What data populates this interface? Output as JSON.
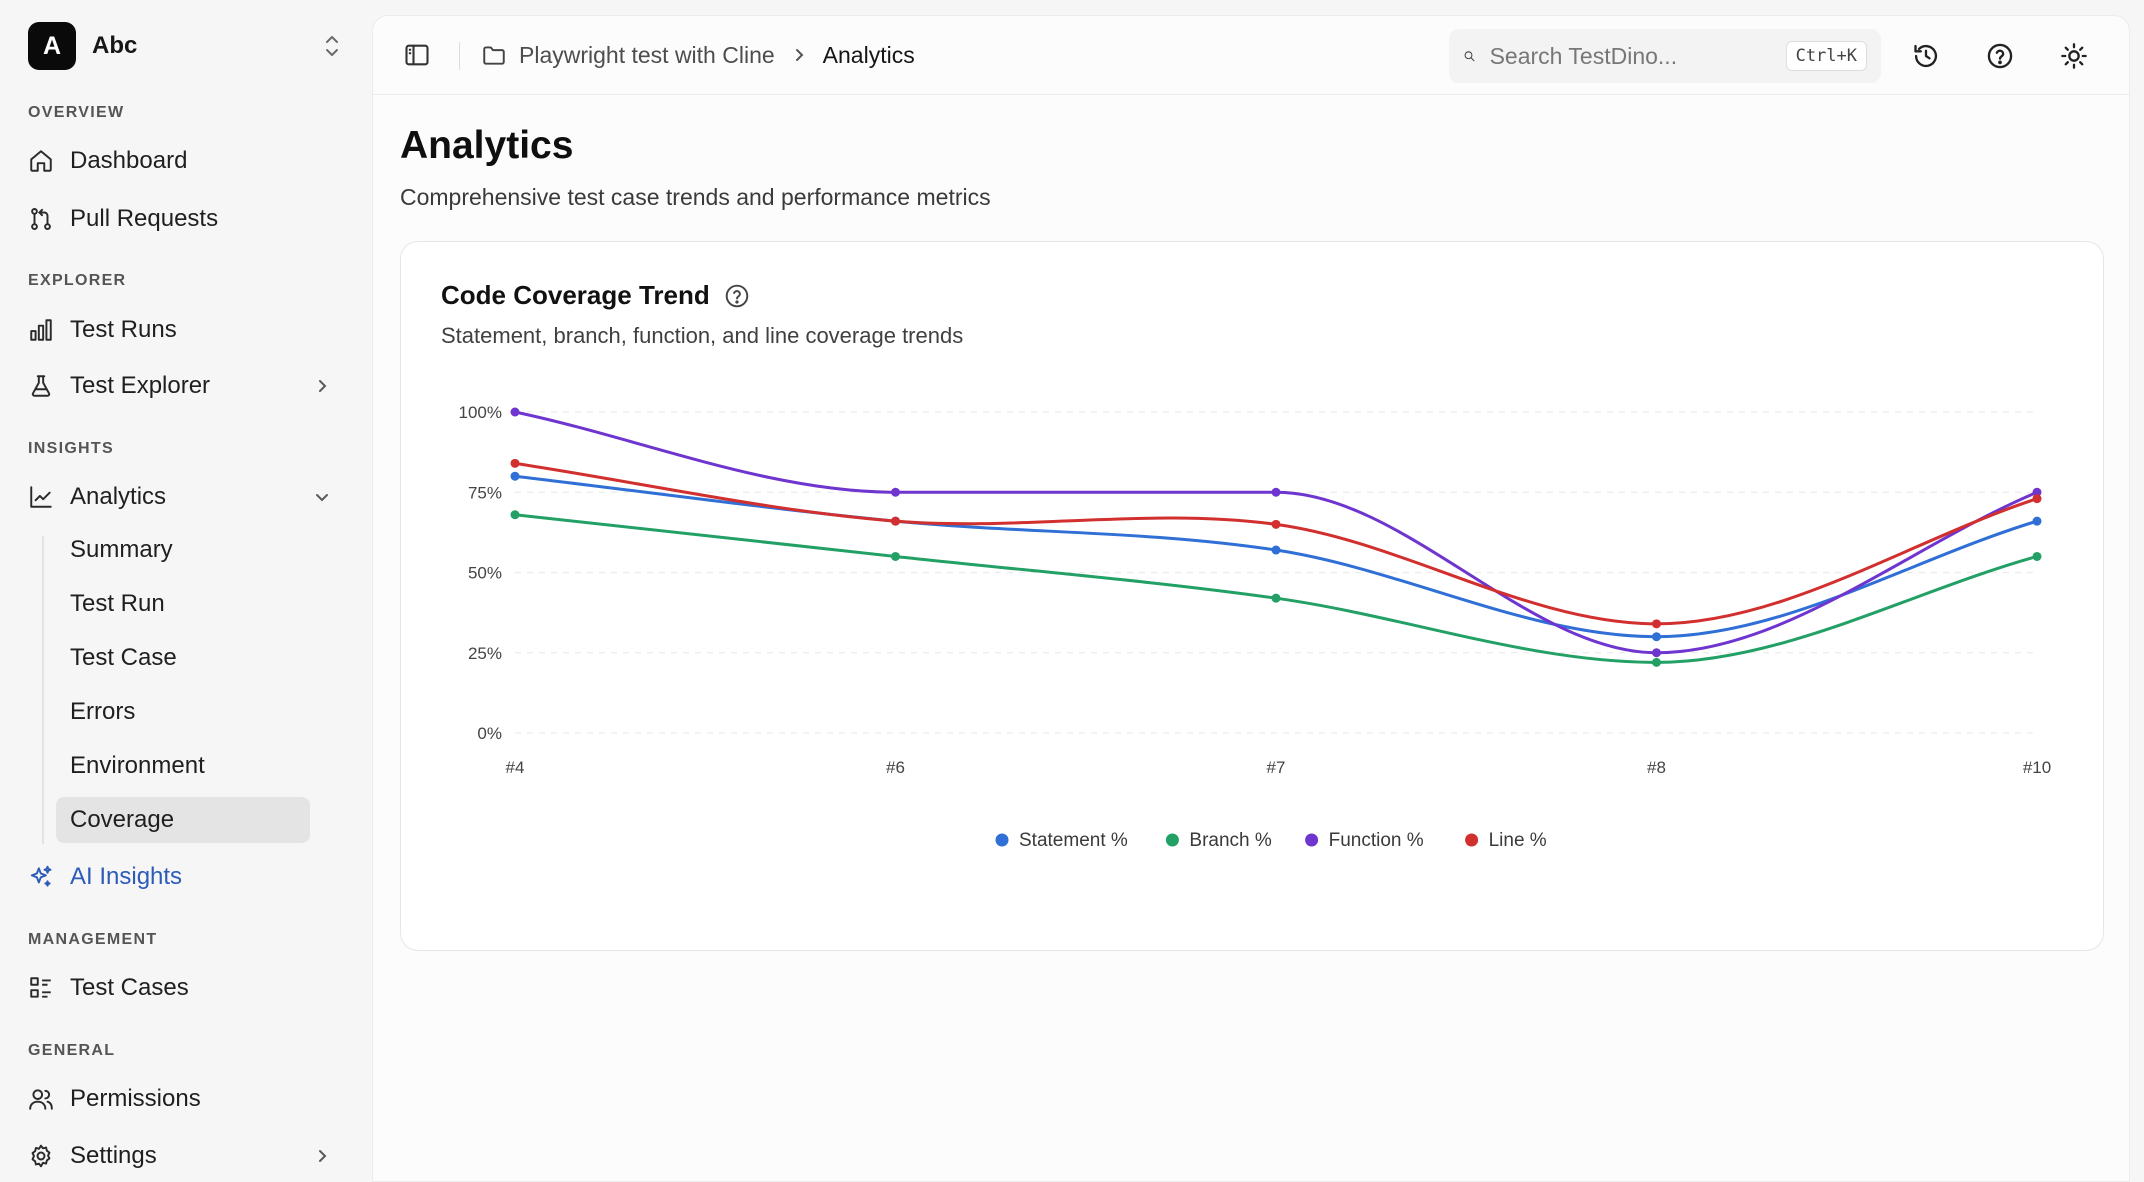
{
  "workspace": {
    "initial": "A",
    "name": "Abc"
  },
  "sidebar": {
    "sections": {
      "overview": "OVERVIEW",
      "explorer": "EXPLORER",
      "insights": "INSIGHTS",
      "management": "MANAGEMENT",
      "general": "GENERAL"
    },
    "dashboard": "Dashboard",
    "pull_requests": "Pull Requests",
    "test_runs": "Test Runs",
    "test_explorer": "Test Explorer",
    "analytics": "Analytics",
    "analytics_sub": [
      "Summary",
      "Test Run",
      "Test Case",
      "Errors",
      "Environment",
      "Coverage"
    ],
    "ai_insights": "AI Insights",
    "test_cases": "Test Cases",
    "permissions": "Permissions",
    "settings": "Settings"
  },
  "topbar": {
    "breadcrumb_project": "Playwright test with Cline",
    "breadcrumb_current": "Analytics",
    "search_placeholder": "Search TestDino...",
    "search_shortcut": "Ctrl+K"
  },
  "page": {
    "title": "Analytics",
    "subtitle": "Comprehensive test case trends and performance metrics"
  },
  "card": {
    "title": "Code Coverage Trend",
    "subtitle": "Statement, branch, function, and line coverage trends"
  },
  "chart_data": {
    "type": "line",
    "title": "Code Coverage Trend",
    "x": [
      "#4",
      "#6",
      "#7",
      "#8",
      "#10"
    ],
    "ylim": [
      0,
      100
    ],
    "yticks": [
      "0%",
      "25%",
      "50%",
      "75%",
      "100%"
    ],
    "grid": "horizontal dashed",
    "legend": "bottom-center",
    "series": [
      {
        "name": "Statement %",
        "color": "#2f6fd6",
        "values": [
          80,
          66,
          57,
          30,
          66
        ]
      },
      {
        "name": "Branch %",
        "color": "#23a065",
        "values": [
          68,
          55,
          42,
          22,
          55
        ]
      },
      {
        "name": "Function %",
        "color": "#6f35cf",
        "values": [
          100,
          75,
          75,
          25,
          75
        ]
      },
      {
        "name": "Line %",
        "color": "#d22f2f",
        "values": [
          84,
          66,
          65,
          34,
          73
        ]
      }
    ]
  }
}
